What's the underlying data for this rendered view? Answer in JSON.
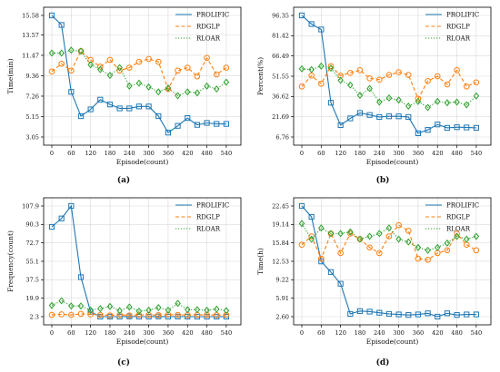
{
  "colors": {
    "blue": "#1f77b4",
    "orange": "#ff7f0e",
    "green": "#2ca02c"
  },
  "chart_data": [
    {
      "type": "line",
      "caption": "(a)",
      "xlabel": "Episode(count)",
      "ylabel": "Time(min)",
      "xlim": [
        0,
        560
      ],
      "ylim": [
        3.05,
        15.58
      ],
      "xticks": [
        "0",
        "60",
        "120",
        "180",
        "240",
        "300",
        "360",
        "420",
        "480",
        "540"
      ],
      "yticks": [
        "3.05",
        "5.15",
        "7.26",
        "9.36",
        "11.47",
        "13.57",
        "15.58"
      ],
      "grid": true,
      "legend_position": "top-right",
      "x": [
        0,
        30,
        60,
        90,
        120,
        150,
        180,
        210,
        240,
        270,
        300,
        330,
        360,
        390,
        420,
        450,
        480,
        510,
        540
      ],
      "series": [
        {
          "name": "PROLIFIC",
          "color": "#1f77b4",
          "style": "solid",
          "marker": "square",
          "values": [
            15.58,
            14.6,
            7.7,
            5.2,
            5.9,
            6.9,
            6.4,
            6.0,
            6.0,
            6.2,
            6.2,
            5.2,
            3.5,
            4.2,
            5.0,
            4.3,
            4.5,
            4.4,
            4.4
          ]
        },
        {
          "name": "RDGLP",
          "color": "#ff7f0e",
          "style": "dashed",
          "marker": "circle",
          "values": [
            9.8,
            10.6,
            9.9,
            11.9,
            11.0,
            10.3,
            11.0,
            9.9,
            10.2,
            10.8,
            11.1,
            10.8,
            8.0,
            9.9,
            10.2,
            9.3,
            11.2,
            9.5,
            10.2
          ]
        },
        {
          "name": "RLOAR",
          "color": "#2ca02c",
          "style": "dotted",
          "marker": "diamond",
          "values": [
            11.7,
            11.7,
            12.0,
            11.9,
            10.5,
            10.0,
            9.4,
            10.2,
            8.3,
            8.6,
            8.2,
            7.7,
            8.1,
            7.3,
            7.7,
            7.6,
            8.3,
            8.0,
            8.7
          ]
        }
      ]
    },
    {
      "type": "line",
      "caption": "(b)",
      "xlabel": "Episode(count)",
      "ylabel": "Percent(%)",
      "xlim": [
        0,
        560
      ],
      "ylim": [
        6.76,
        96.35
      ],
      "xticks": [
        "0",
        "60",
        "120",
        "180",
        "240",
        "300",
        "360",
        "420",
        "480",
        "540"
      ],
      "yticks": [
        "6.76",
        "21.69",
        "36.62",
        "51.55",
        "66.49",
        "81.42",
        "96.35"
      ],
      "grid": true,
      "legend_position": "top-right",
      "x": [
        0,
        30,
        60,
        90,
        120,
        150,
        180,
        210,
        240,
        270,
        300,
        330,
        360,
        390,
        420,
        450,
        480,
        510,
        540
      ],
      "series": [
        {
          "name": "PROLIFIC",
          "color": "#1f77b4",
          "style": "solid",
          "marker": "square",
          "values": [
            96.35,
            90.0,
            86.0,
            32.0,
            15.5,
            20.5,
            24.5,
            23.0,
            21.5,
            22.0,
            22.0,
            21.5,
            9.5,
            12.0,
            16.0,
            13.5,
            14.0,
            13.8,
            13.5
          ]
        },
        {
          "name": "RDGLP",
          "color": "#ff7f0e",
          "style": "dashed",
          "marker": "circle",
          "values": [
            44.0,
            52.0,
            46.0,
            59.0,
            52.0,
            54.0,
            56.0,
            50.0,
            49.0,
            52.5,
            54.5,
            52.5,
            35.0,
            48.0,
            51.5,
            45.5,
            56.0,
            44.0,
            47.0
          ]
        },
        {
          "name": "RLOAR",
          "color": "#2ca02c",
          "style": "dotted",
          "marker": "diamond",
          "values": [
            57.0,
            56.5,
            59.0,
            57.5,
            48.5,
            45.0,
            37.5,
            42.5,
            32.5,
            35.5,
            34.0,
            29.5,
            33.0,
            28.5,
            33.0,
            32.0,
            32.5,
            30.5,
            37.0
          ]
        }
      ]
    },
    {
      "type": "line",
      "caption": "(c)",
      "xlabel": "Episode(count)",
      "ylabel": "Frequency(count)",
      "xlim": [
        0,
        560
      ],
      "ylim": [
        2.3,
        107.9
      ],
      "xticks": [
        "0",
        "60",
        "120",
        "180",
        "240",
        "300",
        "360",
        "420",
        "480",
        "540"
      ],
      "yticks": [
        "2.3",
        "19.9",
        "37.5",
        "55.1",
        "72.7",
        "90.3",
        "107.9"
      ],
      "grid": true,
      "legend_position": "top-right",
      "x": [
        0,
        30,
        60,
        90,
        120,
        150,
        180,
        210,
        240,
        270,
        300,
        330,
        360,
        390,
        420,
        450,
        480,
        510,
        540
      ],
      "series": [
        {
          "name": "PROLIFIC",
          "color": "#1f77b4",
          "style": "solid",
          "marker": "square",
          "values": [
            88.0,
            96.0,
            107.9,
            40.0,
            7.0,
            2.3,
            2.3,
            2.3,
            2.5,
            2.3,
            2.3,
            2.5,
            2.3,
            2.4,
            2.3,
            2.3,
            2.3,
            2.3,
            2.3
          ]
        },
        {
          "name": "RDGLP",
          "color": "#ff7f0e",
          "style": "dashed",
          "marker": "circle",
          "values": [
            4.0,
            4.5,
            4.0,
            5.0,
            4.5,
            4.0,
            3.5,
            4.0,
            3.5,
            4.0,
            4.0,
            3.8,
            4.2,
            4.0,
            3.8,
            4.0,
            4.0,
            3.8,
            4.0
          ]
        },
        {
          "name": "RLOAR",
          "color": "#2ca02c",
          "style": "dotted",
          "marker": "diamond",
          "values": [
            13.0,
            17.5,
            12.5,
            12.5,
            8.5,
            10.0,
            12.0,
            8.0,
            11.5,
            7.5,
            8.5,
            11.0,
            8.5,
            15.0,
            9.0,
            9.0,
            8.5,
            9.5,
            8.0
          ]
        }
      ]
    },
    {
      "type": "line",
      "caption": "(d)",
      "xlabel": "Episode(count)",
      "ylabel": "Time(h)",
      "xlim": [
        0,
        560
      ],
      "ylim": [
        2.6,
        22.45
      ],
      "xticks": [
        "0",
        "60",
        "120",
        "180",
        "240",
        "300",
        "360",
        "420",
        "480",
        "540"
      ],
      "yticks": [
        "2.60",
        "5.91",
        "9.22",
        "12.53",
        "15.84",
        "19.14",
        "22.45"
      ],
      "grid": true,
      "legend_position": "top-right",
      "x": [
        0,
        30,
        60,
        90,
        120,
        150,
        180,
        210,
        240,
        270,
        300,
        330,
        360,
        390,
        420,
        450,
        480,
        510,
        540
      ],
      "series": [
        {
          "name": "PROLIFIC",
          "color": "#1f77b4",
          "style": "solid",
          "marker": "square",
          "values": [
            22.45,
            20.5,
            12.5,
            10.6,
            8.5,
            3.1,
            3.6,
            3.5,
            3.3,
            3.1,
            3.0,
            2.9,
            3.0,
            3.2,
            2.6,
            3.2,
            2.9,
            3.0,
            3.0
          ]
        },
        {
          "name": "RDGLP",
          "color": "#ff7f0e",
          "style": "dashed",
          "marker": "circle",
          "values": [
            15.5,
            17.0,
            13.0,
            17.5,
            14.0,
            17.5,
            16.5,
            15.0,
            14.0,
            17.0,
            19.0,
            18.0,
            13.0,
            12.8,
            14.0,
            14.5,
            17.5,
            15.5,
            14.5
          ]
        },
        {
          "name": "RLOAR",
          "color": "#2ca02c",
          "style": "dotted",
          "marker": "diamond",
          "values": [
            19.3,
            16.5,
            18.5,
            17.5,
            17.5,
            17.8,
            16.5,
            17.0,
            17.5,
            18.5,
            16.5,
            16.0,
            15.0,
            14.5,
            15.0,
            15.8,
            17.0,
            16.5,
            17.0
          ]
        }
      ]
    }
  ]
}
